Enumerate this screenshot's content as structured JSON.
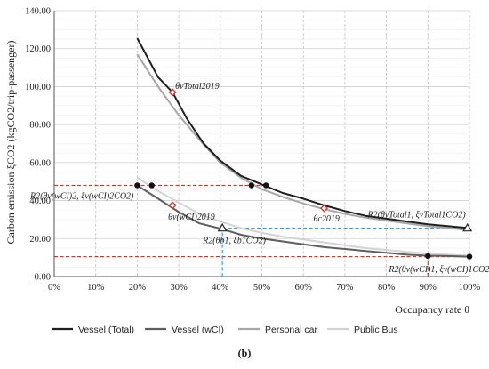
{
  "chart_data": {
    "type": "line",
    "ylabel": "Carbon emission ξCO2 (kgCO2/trip-passenger)",
    "xlabel": "Occupancy rate θ",
    "panel_label": "(b)",
    "xlim": [
      0,
      100
    ],
    "ylim": [
      0,
      140
    ],
    "x_ticks": [
      0,
      10,
      20,
      30,
      40,
      50,
      60,
      70,
      80,
      90,
      100
    ],
    "x_tick_labels": [
      "0%",
      "10%",
      "20%",
      "30%",
      "40%",
      "50%",
      "60%",
      "70%",
      "80%",
      "90%",
      "100%"
    ],
    "y_ticks": [
      0,
      20,
      40,
      60,
      80,
      100,
      120,
      140
    ],
    "y_tick_labels": [
      "0.00",
      "20.00",
      "40.00",
      "60.00",
      "80.00",
      "100.00",
      "120.00",
      "140.00"
    ],
    "grid": true,
    "legend_position": "bottom",
    "series": [
      {
        "name": "Vessel (Total)",
        "color": "#1f1f1f",
        "points": [
          [
            20,
            125.5
          ],
          [
            25,
            105
          ],
          [
            28.5,
            97
          ],
          [
            32,
            83
          ],
          [
            36,
            70
          ],
          [
            40,
            61
          ],
          [
            45,
            53
          ],
          [
            50,
            48.5
          ],
          [
            55,
            44
          ],
          [
            60,
            41
          ],
          [
            65,
            37.5
          ],
          [
            70,
            34.5
          ],
          [
            75,
            32
          ],
          [
            80,
            30.5
          ],
          [
            85,
            29
          ],
          [
            90,
            27.5
          ],
          [
            95,
            26.5
          ],
          [
            100,
            25.5
          ]
        ]
      },
      {
        "name": "Vessel (wCI)",
        "color": "#5e5e5e",
        "points": [
          [
            20,
            48
          ],
          [
            25,
            41
          ],
          [
            30,
            34
          ],
          [
            35,
            28
          ],
          [
            40.5,
            25
          ],
          [
            45,
            22
          ],
          [
            50,
            20
          ],
          [
            55,
            18.5
          ],
          [
            60,
            17
          ],
          [
            65,
            15.5
          ],
          [
            70,
            14.5
          ],
          [
            75,
            13.5
          ],
          [
            80,
            12.5
          ],
          [
            85,
            11.5
          ],
          [
            90,
            11
          ],
          [
            95,
            10.8
          ],
          [
            100,
            10.5
          ]
        ]
      },
      {
        "name": "Personal car",
        "color": "#a6a6a6",
        "points": [
          [
            20,
            117
          ],
          [
            25,
            100
          ],
          [
            30,
            85
          ],
          [
            35,
            72
          ],
          [
            40,
            60
          ],
          [
            45,
            52
          ],
          [
            50,
            46
          ],
          [
            55,
            42
          ],
          [
            60,
            38.5
          ],
          [
            65,
            35.5
          ],
          [
            70,
            33
          ],
          [
            75,
            31
          ],
          [
            80,
            29.5
          ],
          [
            85,
            28
          ],
          [
            90,
            26.5
          ],
          [
            95,
            25.5
          ],
          [
            100,
            24.5
          ]
        ]
      },
      {
        "name": "Public Bus",
        "color": "#d3d3d3",
        "points": [
          [
            20,
            52
          ],
          [
            25,
            45
          ],
          [
            30,
            39
          ],
          [
            35,
            33
          ],
          [
            40,
            29
          ],
          [
            45,
            25.5
          ],
          [
            50,
            23
          ],
          [
            55,
            21
          ],
          [
            60,
            19.5
          ],
          [
            65,
            18
          ],
          [
            70,
            16.5
          ],
          [
            75,
            15
          ],
          [
            80,
            14
          ],
          [
            85,
            13
          ],
          [
            90,
            12
          ],
          [
            95,
            11.5
          ],
          [
            100,
            11
          ]
        ]
      }
    ],
    "black_points": [
      [
        20,
        48
      ],
      [
        23.5,
        48
      ],
      [
        47.5,
        48
      ],
      [
        51,
        48
      ],
      [
        90,
        10.8
      ],
      [
        100,
        10.5
      ]
    ],
    "diamond_markers": [
      [
        28.5,
        97
      ],
      [
        28.5,
        37.5
      ],
      [
        65,
        36
      ]
    ],
    "triangle_markers": [
      [
        40.5,
        25.5
      ],
      [
        99.5,
        25.5
      ]
    ],
    "reference_lines": [
      {
        "color": "#d93025",
        "style": "dashed",
        "type": "horizontal",
        "y": 48,
        "x_from": 0,
        "x_to": 51
      },
      {
        "color": "#d93025",
        "style": "dashed",
        "type": "horizontal",
        "y": 10.5,
        "x_from": 0,
        "x_to": 100
      },
      {
        "color": "#d93025",
        "style": "dashed",
        "type": "vertical",
        "x": 90,
        "y_from": 0,
        "y_to": 10.5
      },
      {
        "color": "#1fa3d6",
        "style": "dashed",
        "type": "horizontal",
        "y": 25.5,
        "x_from": 40.5,
        "x_to": 99.5
      },
      {
        "color": "#1fa3d6",
        "style": "dashed",
        "type": "vertical",
        "x": 40.5,
        "y_from": 0,
        "y_to": 25.5
      }
    ],
    "annotations": [
      {
        "text": "θvTotal2019",
        "x": 28.5,
        "y": 97
      },
      {
        "text": "θv(wCI)2019",
        "x": 28.5,
        "y": 37.5
      },
      {
        "text": "θc2019",
        "x": 65,
        "y": 36
      },
      {
        "text": "R2(θv(wCI)2, ξv(wCI)2CO2)",
        "x": 20,
        "y": 48
      },
      {
        "text": "R2(θb1, ξb1CO2)",
        "x": 40.5,
        "y": 25.5
      },
      {
        "text": "R2(θvTotal1, ξvTotal1CO2)",
        "x": 99.5,
        "y": 25.5
      },
      {
        "text": "R2(θv(wCI)1, ξv(wCI)1CO2)",
        "x": 90,
        "y": 10.8
      }
    ]
  }
}
